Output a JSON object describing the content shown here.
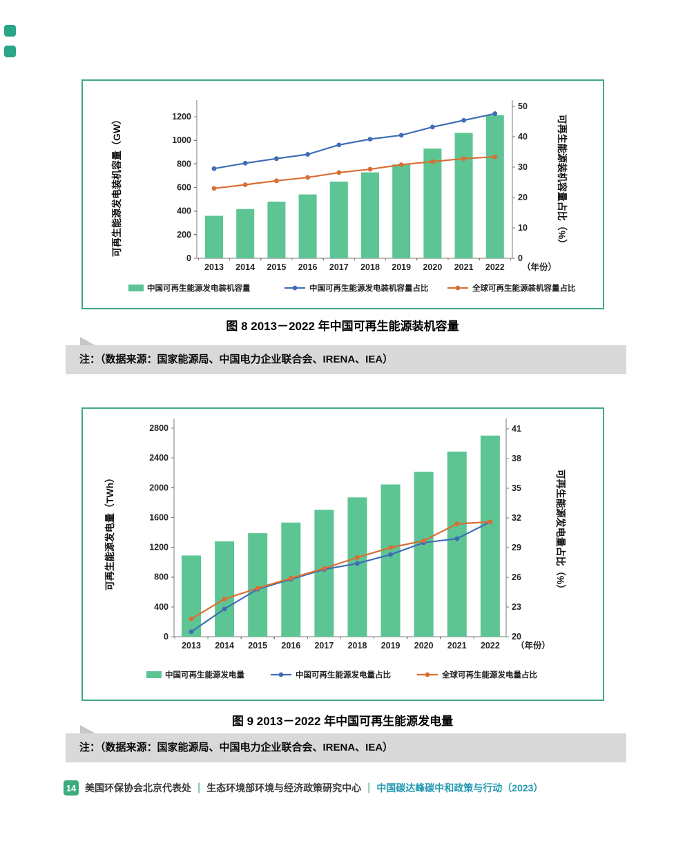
{
  "chart_data": [
    {
      "type": "bar+line",
      "figure": "图 8",
      "title": "2013－2022 年中国可再生能源装机容量",
      "categories": [
        "2013",
        "2014",
        "2015",
        "2016",
        "2017",
        "2018",
        "2019",
        "2020",
        "2021",
        "2022"
      ],
      "x_suffix_label": "（年份）",
      "bars": {
        "name": "中国可再生能源发电装机容量",
        "unit": "GW",
        "values": [
          360,
          417,
          480,
          541,
          650,
          728,
          795,
          930,
          1063,
          1213
        ]
      },
      "lines": [
        {
          "name": "中国可再生能源发电装机容量占比",
          "unit": "%",
          "color_key": "line_china",
          "values": [
            29.5,
            31.3,
            32.8,
            34.2,
            37.3,
            39.2,
            40.5,
            43.2,
            45.4,
            47.6
          ]
        },
        {
          "name": "全球可再生能源装机容量占比",
          "unit": "%",
          "color_key": "line_global",
          "values": [
            23.0,
            24.2,
            25.5,
            26.6,
            28.2,
            29.3,
            30.8,
            31.8,
            32.8,
            33.4
          ]
        }
      ],
      "left_axis": {
        "label": "可再生能源发电装机容量（GW）",
        "ticks": [
          0,
          200,
          400,
          600,
          800,
          1000,
          1200
        ],
        "range": [
          0,
          1340
        ]
      },
      "right_axis": {
        "label": "可再生能源装机容量占比（%）",
        "ticks": [
          0,
          10,
          20,
          30,
          40,
          50
        ],
        "range": [
          0,
          52
        ]
      },
      "grid": false,
      "legend_position": "bottom"
    },
    {
      "type": "bar+line",
      "figure": "图 9",
      "title": "2013－2022 年中国可再生能源发电量",
      "categories": [
        "2013",
        "2014",
        "2015",
        "2016",
        "2017",
        "2018",
        "2019",
        "2020",
        "2021",
        "2022"
      ],
      "x_suffix_label": "（年份）",
      "bars": {
        "name": "中国可再生能源发电量",
        "unit": "TWh",
        "values": [
          1090,
          1280,
          1390,
          1532,
          1704,
          1870,
          2044,
          2214,
          2485,
          2700
        ]
      },
      "lines": [
        {
          "name": "中国可再生能源发电量占比",
          "unit": "%",
          "color_key": "line_china",
          "values": [
            20.5,
            22.8,
            24.8,
            25.8,
            26.8,
            27.4,
            28.3,
            29.5,
            29.9,
            31.6
          ]
        },
        {
          "name": "全球可再生能源发电量占比",
          "unit": "%",
          "color_key": "line_global",
          "values": [
            21.8,
            23.8,
            24.9,
            25.9,
            26.9,
            28.0,
            29.0,
            29.7,
            31.4,
            31.6
          ]
        }
      ],
      "left_axis": {
        "label": "可再生能源发电量（TWh）",
        "ticks": [
          0,
          400,
          800,
          1200,
          1600,
          2000,
          2400,
          2800
        ],
        "range": [
          0,
          2930
        ]
      },
      "right_axis": {
        "label": "可再生能源发电量占比（%）",
        "ticks": [
          20,
          23,
          26,
          29,
          32,
          35,
          38,
          41
        ],
        "range": [
          20,
          42
        ]
      },
      "grid": false,
      "legend_position": "bottom"
    }
  ],
  "captions": {
    "fig8": "图 8  2013－2022 年中国可再生能源装机容量",
    "fig9": "图 9  2013－2022 年中国可再生能源发电量"
  },
  "note": {
    "text": "注：（数据来源：国家能源局、中国电力企业联合会、IRENA、IEA）"
  },
  "footer": {
    "page_number": "14",
    "org1": "美国环保协会北京代表处",
    "org2": "生态环境部环境与经济政策研究中心",
    "report": "中国碳达峰碳中和政策与行动（2023）",
    "separator": "|"
  },
  "colors": {
    "bar": "#5cc593",
    "line_china": "#3f6db5",
    "line_global": "#d96e35",
    "card_border": "#43a87d",
    "note_bg": "#d9d9d9",
    "accent_green": "#2ba487",
    "footer_report": "#2399b2"
  }
}
